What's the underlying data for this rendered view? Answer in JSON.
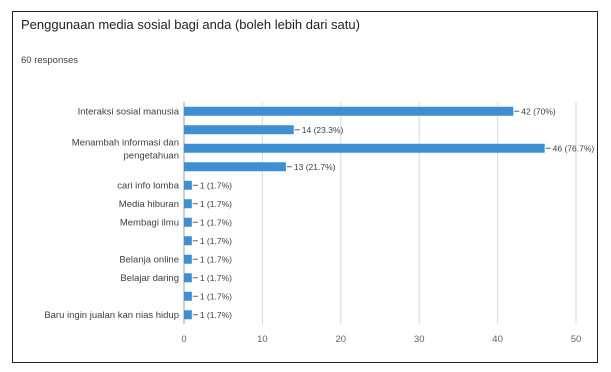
{
  "header": {
    "title": "Penggunaan media sosial bagi anda (boleh lebih dari satu)",
    "responses": "60 responses"
  },
  "colors": {
    "bar": "#3d8fd1",
    "grid": "#d9d9d9",
    "text": "#3c4043"
  },
  "chart_data": {
    "type": "bar",
    "orientation": "horizontal",
    "title": "Penggunaan media sosial bagi anda (boleh lebih dari satu)",
    "categories": [
      "Interaksi sosial manusia",
      "",
      "Menambah informasi dan pengetahuan",
      "",
      "cari info lomba",
      "Media hiburan",
      "Membagi ilmu",
      "",
      "Belanja online",
      "Belajar daring",
      "",
      "Baru ingin jualan kan nias hidup"
    ],
    "values": [
      42,
      14,
      46,
      13,
      1,
      1,
      1,
      1,
      1,
      1,
      1,
      1
    ],
    "data_labels": [
      "42 (70%)",
      "14 (23.3%)",
      "46 (76.7%)",
      "13 (21.7%)",
      "1 (1.7%)",
      "1 (1.7%)",
      "1 (1.7%)",
      "1 (1.7%)",
      "1 (1.7%)",
      "1 (1.7%)",
      "1 (1.7%)",
      "1 (1.7%)"
    ],
    "xlim": [
      0,
      50
    ],
    "xticks": [
      "0",
      "10",
      "20",
      "30",
      "40",
      "50"
    ],
    "grid": true
  }
}
